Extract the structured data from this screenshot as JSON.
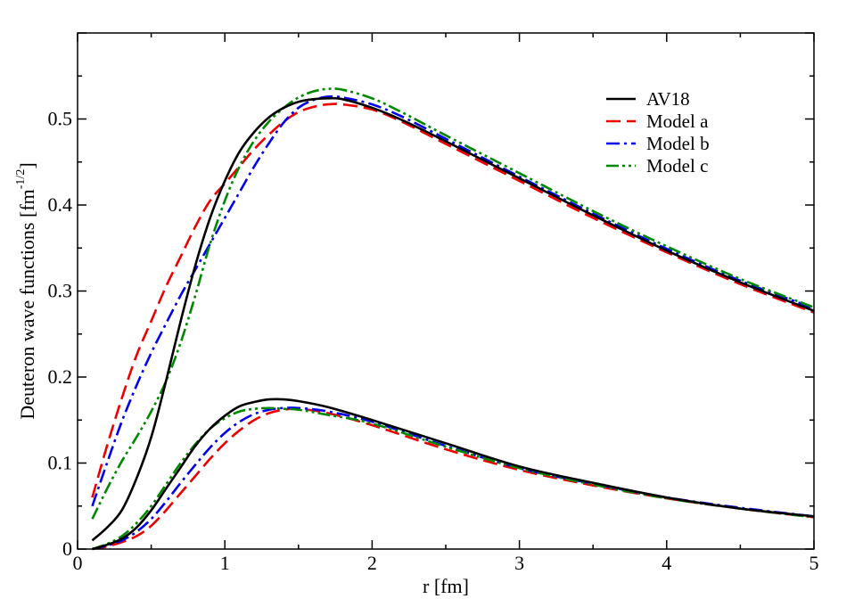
{
  "chart_data": {
    "type": "line",
    "xlabel": "r [fm]",
    "ylabel": "Deuteron wave functions [fm",
    "ylabel_sup": "-1/2",
    "ylabel_close": "]",
    "xlim": [
      0,
      5
    ],
    "ylim": [
      0,
      0.6
    ],
    "xticks": [
      0,
      1,
      2,
      3,
      4,
      5
    ],
    "xtick_labels": [
      "0",
      "1",
      "2",
      "3",
      "4",
      "5"
    ],
    "yticks": [
      0,
      0.1,
      0.2,
      0.3,
      0.4,
      0.5
    ],
    "ytick_labels": [
      "0",
      "0.1",
      "0.2",
      "0.3",
      "0.4",
      "0.5"
    ],
    "grid": false,
    "legend_position": "top-right",
    "legend": [
      "AV18",
      "Model a",
      "Model b",
      "Model c"
    ],
    "series": [
      {
        "name": "AV18",
        "component": "u",
        "color": "#000000",
        "dash": "solid",
        "points": [
          [
            0.1,
            0.01
          ],
          [
            0.2,
            0.025
          ],
          [
            0.3,
            0.045
          ],
          [
            0.4,
            0.082
          ],
          [
            0.5,
            0.13
          ],
          [
            0.6,
            0.195
          ],
          [
            0.7,
            0.265
          ],
          [
            0.8,
            0.33
          ],
          [
            0.9,
            0.385
          ],
          [
            1.0,
            0.428
          ],
          [
            1.1,
            0.462
          ],
          [
            1.2,
            0.485
          ],
          [
            1.3,
            0.502
          ],
          [
            1.4,
            0.513
          ],
          [
            1.5,
            0.52
          ],
          [
            1.6,
            0.523
          ],
          [
            1.7,
            0.524
          ],
          [
            1.8,
            0.523
          ],
          [
            2.0,
            0.513
          ],
          [
            2.2,
            0.499
          ],
          [
            2.5,
            0.474
          ],
          [
            3.0,
            0.431
          ],
          [
            3.5,
            0.388
          ],
          [
            4.0,
            0.347
          ],
          [
            4.5,
            0.31
          ],
          [
            5.0,
            0.277
          ]
        ]
      },
      {
        "name": "AV18",
        "component": "w",
        "color": "#000000",
        "dash": "solid",
        "points": [
          [
            0.1,
            0.0
          ],
          [
            0.2,
            0.005
          ],
          [
            0.3,
            0.012
          ],
          [
            0.4,
            0.025
          ],
          [
            0.5,
            0.045
          ],
          [
            0.6,
            0.07
          ],
          [
            0.7,
            0.095
          ],
          [
            0.8,
            0.12
          ],
          [
            0.9,
            0.14
          ],
          [
            1.0,
            0.155
          ],
          [
            1.1,
            0.166
          ],
          [
            1.2,
            0.171
          ],
          [
            1.3,
            0.174
          ],
          [
            1.4,
            0.174
          ],
          [
            1.5,
            0.172
          ],
          [
            1.7,
            0.165
          ],
          [
            2.0,
            0.15
          ],
          [
            2.5,
            0.123
          ],
          [
            3.0,
            0.096
          ],
          [
            3.5,
            0.077
          ],
          [
            4.0,
            0.06
          ],
          [
            4.5,
            0.047
          ],
          [
            5.0,
            0.038
          ]
        ]
      },
      {
        "name": "Model a",
        "component": "u",
        "color": "#ee0000",
        "dash": "long-dash",
        "points": [
          [
            0.1,
            0.06
          ],
          [
            0.2,
            0.12
          ],
          [
            0.3,
            0.175
          ],
          [
            0.4,
            0.225
          ],
          [
            0.5,
            0.265
          ],
          [
            0.6,
            0.305
          ],
          [
            0.7,
            0.34
          ],
          [
            0.8,
            0.375
          ],
          [
            0.9,
            0.405
          ],
          [
            1.0,
            0.425
          ],
          [
            1.1,
            0.445
          ],
          [
            1.2,
            0.465
          ],
          [
            1.3,
            0.482
          ],
          [
            1.4,
            0.497
          ],
          [
            1.5,
            0.508
          ],
          [
            1.6,
            0.514
          ],
          [
            1.7,
            0.517
          ],
          [
            1.8,
            0.517
          ],
          [
            2.0,
            0.511
          ],
          [
            2.2,
            0.497
          ],
          [
            2.5,
            0.471
          ],
          [
            3.0,
            0.428
          ],
          [
            3.5,
            0.385
          ],
          [
            4.0,
            0.345
          ],
          [
            4.5,
            0.308
          ],
          [
            5.0,
            0.275
          ]
        ]
      },
      {
        "name": "Model a",
        "component": "w",
        "color": "#ee0000",
        "dash": "long-dash",
        "points": [
          [
            0.1,
            0.0
          ],
          [
            0.2,
            0.003
          ],
          [
            0.3,
            0.008
          ],
          [
            0.4,
            0.015
          ],
          [
            0.5,
            0.027
          ],
          [
            0.6,
            0.045
          ],
          [
            0.7,
            0.065
          ],
          [
            0.8,
            0.085
          ],
          [
            0.9,
            0.105
          ],
          [
            1.0,
            0.123
          ],
          [
            1.1,
            0.138
          ],
          [
            1.2,
            0.15
          ],
          [
            1.3,
            0.158
          ],
          [
            1.4,
            0.162
          ],
          [
            1.5,
            0.163
          ],
          [
            1.7,
            0.158
          ],
          [
            2.0,
            0.144
          ],
          [
            2.5,
            0.116
          ],
          [
            3.0,
            0.092
          ],
          [
            3.5,
            0.074
          ],
          [
            4.0,
            0.059
          ],
          [
            4.5,
            0.047
          ],
          [
            5.0,
            0.037
          ]
        ]
      },
      {
        "name": "Model b",
        "component": "u",
        "color": "#0000ee",
        "dash": "dash-dot",
        "points": [
          [
            0.1,
            0.05
          ],
          [
            0.2,
            0.1
          ],
          [
            0.3,
            0.148
          ],
          [
            0.4,
            0.19
          ],
          [
            0.5,
            0.228
          ],
          [
            0.6,
            0.262
          ],
          [
            0.7,
            0.295
          ],
          [
            0.8,
            0.325
          ],
          [
            0.9,
            0.355
          ],
          [
            1.0,
            0.385
          ],
          [
            1.1,
            0.415
          ],
          [
            1.2,
            0.445
          ],
          [
            1.3,
            0.472
          ],
          [
            1.4,
            0.496
          ],
          [
            1.5,
            0.513
          ],
          [
            1.6,
            0.522
          ],
          [
            1.7,
            0.526
          ],
          [
            1.8,
            0.525
          ],
          [
            2.0,
            0.517
          ],
          [
            2.2,
            0.503
          ],
          [
            2.5,
            0.477
          ],
          [
            3.0,
            0.433
          ],
          [
            3.5,
            0.39
          ],
          [
            4.0,
            0.349
          ],
          [
            4.5,
            0.312
          ],
          [
            5.0,
            0.28
          ]
        ]
      },
      {
        "name": "Model b",
        "component": "w",
        "color": "#0000ee",
        "dash": "dash-dot",
        "points": [
          [
            0.1,
            0.0
          ],
          [
            0.2,
            0.004
          ],
          [
            0.3,
            0.01
          ],
          [
            0.4,
            0.02
          ],
          [
            0.5,
            0.035
          ],
          [
            0.6,
            0.055
          ],
          [
            0.7,
            0.077
          ],
          [
            0.8,
            0.098
          ],
          [
            0.9,
            0.118
          ],
          [
            1.0,
            0.135
          ],
          [
            1.1,
            0.148
          ],
          [
            1.2,
            0.157
          ],
          [
            1.3,
            0.162
          ],
          [
            1.4,
            0.164
          ],
          [
            1.5,
            0.164
          ],
          [
            1.7,
            0.16
          ],
          [
            2.0,
            0.148
          ],
          [
            2.5,
            0.12
          ],
          [
            3.0,
            0.094
          ],
          [
            3.5,
            0.076
          ],
          [
            4.0,
            0.06
          ],
          [
            4.5,
            0.048
          ],
          [
            5.0,
            0.038
          ]
        ]
      },
      {
        "name": "Model c",
        "component": "u",
        "color": "#008800",
        "dash": "dash-dot-dot",
        "points": [
          [
            0.1,
            0.035
          ],
          [
            0.2,
            0.07
          ],
          [
            0.3,
            0.102
          ],
          [
            0.4,
            0.13
          ],
          [
            0.5,
            0.16
          ],
          [
            0.6,
            0.195
          ],
          [
            0.7,
            0.24
          ],
          [
            0.8,
            0.295
          ],
          [
            0.9,
            0.355
          ],
          [
            1.0,
            0.405
          ],
          [
            1.1,
            0.445
          ],
          [
            1.2,
            0.475
          ],
          [
            1.3,
            0.497
          ],
          [
            1.4,
            0.513
          ],
          [
            1.5,
            0.525
          ],
          [
            1.6,
            0.532
          ],
          [
            1.7,
            0.535
          ],
          [
            1.8,
            0.534
          ],
          [
            2.0,
            0.524
          ],
          [
            2.2,
            0.508
          ],
          [
            2.5,
            0.481
          ],
          [
            3.0,
            0.437
          ],
          [
            3.5,
            0.393
          ],
          [
            4.0,
            0.352
          ],
          [
            4.5,
            0.314
          ],
          [
            5.0,
            0.281
          ]
        ]
      },
      {
        "name": "Model c",
        "component": "w",
        "color": "#008800",
        "dash": "dash-dot-dot",
        "points": [
          [
            0.1,
            0.0
          ],
          [
            0.2,
            0.006
          ],
          [
            0.3,
            0.015
          ],
          [
            0.4,
            0.03
          ],
          [
            0.5,
            0.05
          ],
          [
            0.6,
            0.075
          ],
          [
            0.7,
            0.1
          ],
          [
            0.8,
            0.122
          ],
          [
            0.9,
            0.14
          ],
          [
            1.0,
            0.152
          ],
          [
            1.1,
            0.16
          ],
          [
            1.2,
            0.163
          ],
          [
            1.3,
            0.164
          ],
          [
            1.4,
            0.163
          ],
          [
            1.5,
            0.162
          ],
          [
            1.7,
            0.156
          ],
          [
            2.0,
            0.146
          ],
          [
            2.5,
            0.119
          ],
          [
            3.0,
            0.094
          ],
          [
            3.5,
            0.075
          ],
          [
            4.0,
            0.059
          ],
          [
            4.5,
            0.047
          ],
          [
            5.0,
            0.037
          ]
        ]
      }
    ]
  }
}
